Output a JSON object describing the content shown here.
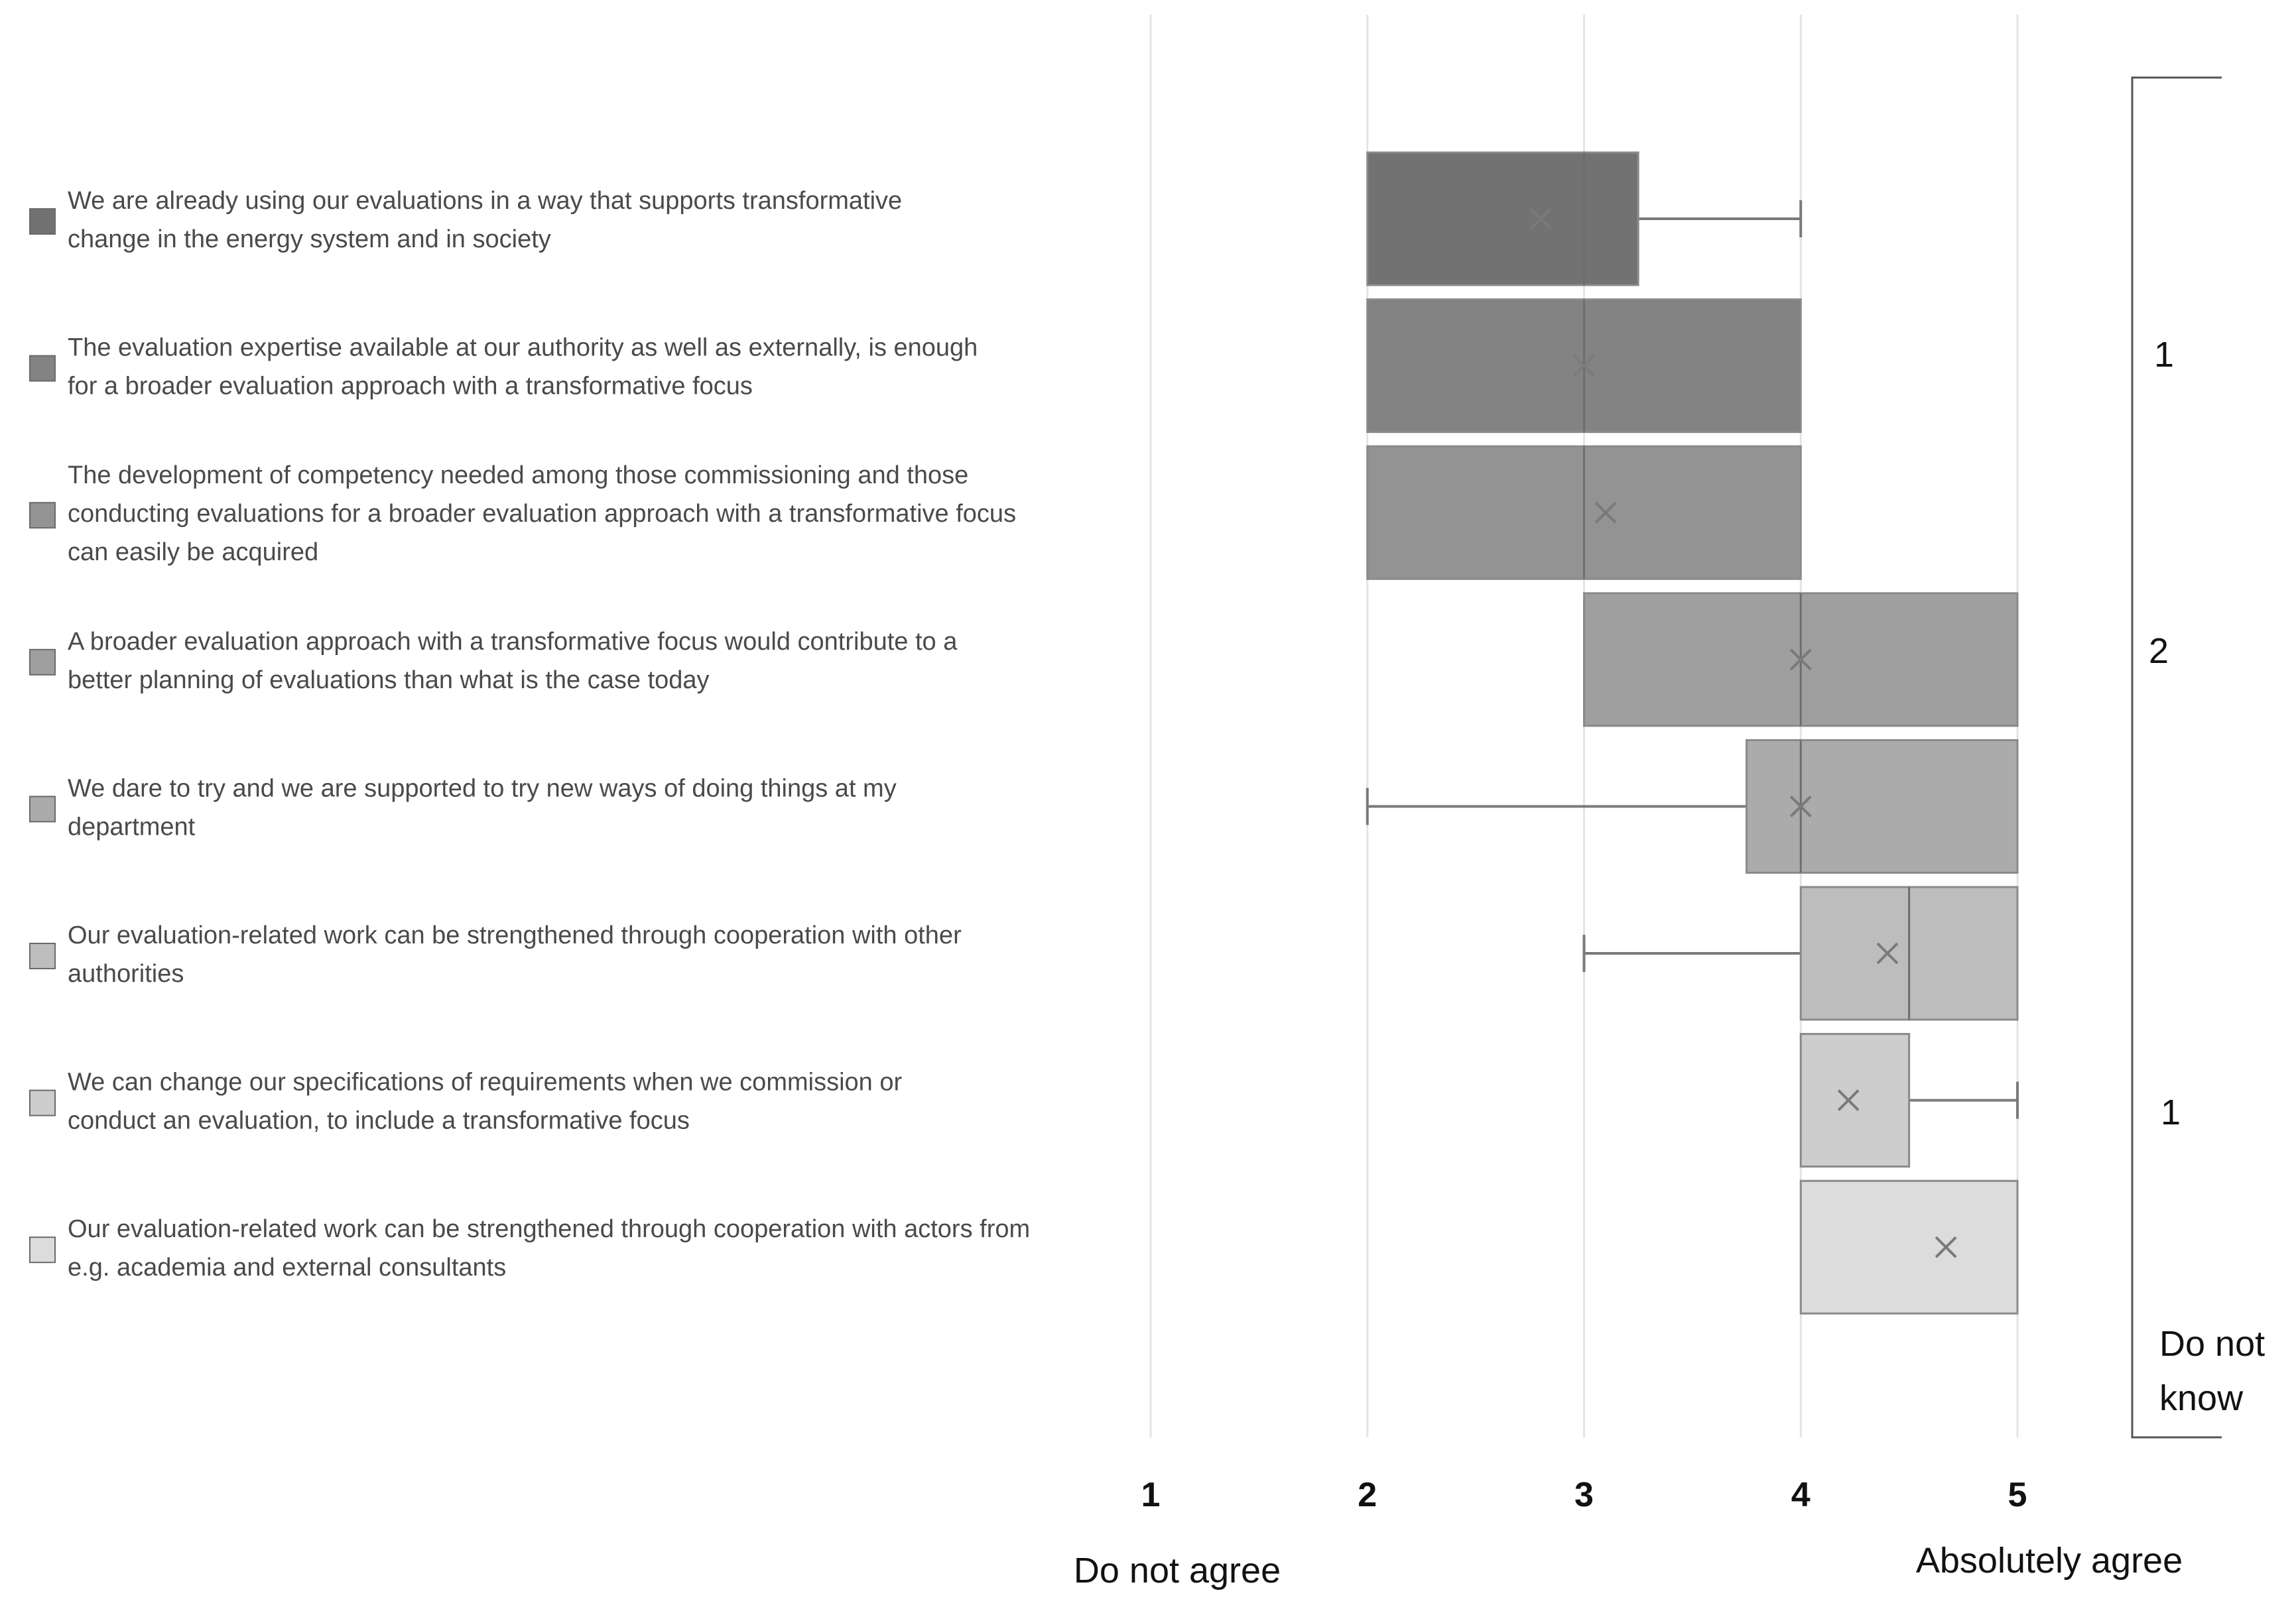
{
  "chart_data": {
    "type": "boxplot",
    "orientation": "horizontal",
    "xlim": [
      1,
      5
    ],
    "x_ticks": [
      "1",
      "2",
      "3",
      "4",
      "5"
    ],
    "x_low_label": "Do not agree",
    "x_high_label": "Absolutely agree",
    "items": [
      {
        "label_lines": [
          "We are already using our evaluations in a way that supports transformative",
          "change in the energy system and in society"
        ],
        "color": "#727272",
        "min": 2,
        "q1": 2,
        "median": 3,
        "q3": 3.25,
        "max": 4,
        "mean": 2.8
      },
      {
        "label_lines": [
          "The evaluation expertise available at our authority as well as externally, is enough",
          "for a broader evaluation approach with a transformative focus"
        ],
        "color": "#838383",
        "min": 2,
        "q1": 2,
        "median": 3,
        "q3": 4,
        "max": 4,
        "mean": 3.0
      },
      {
        "label_lines": [
          "The development of competency needed among those commissioning and those",
          "conducting evaluations for a broader evaluation approach with a transformative focus",
          "can easily be acquired"
        ],
        "color": "#939393",
        "min": 2,
        "q1": 2,
        "median": 3,
        "q3": 4,
        "max": 4,
        "mean": 3.1
      },
      {
        "label_lines": [
          "A broader evaluation approach with a transformative focus would contribute to a",
          "better planning of evaluations than what is the case today"
        ],
        "color": "#9f9f9f",
        "min": 3,
        "q1": 3,
        "median": 4,
        "q3": 5,
        "max": 5,
        "mean": 4.0
      },
      {
        "label_lines": [
          "We dare to try and we are supported to try new ways of doing things at my",
          "department"
        ],
        "color": "#ababab",
        "min": 2,
        "q1": 3.75,
        "median": 4,
        "q3": 5,
        "max": 5,
        "mean": 4.0
      },
      {
        "label_lines": [
          "Our evaluation-related work can be strengthened through cooperation with other",
          "authorities"
        ],
        "color": "#bdbdbd",
        "min": 3,
        "q1": 4,
        "median": 4.5,
        "q3": 5,
        "max": 5,
        "mean": 4.4
      },
      {
        "label_lines": [
          "We can change our specifications of requirements when we commission or",
          "conduct an evaluation, to include a transformative focus"
        ],
        "color": "#cdcdcd",
        "min": 4,
        "q1": 4,
        "median": 4,
        "q3": 4.5,
        "max": 5,
        "mean": 4.22
      },
      {
        "label_lines": [
          "Our evaluation-related work can be strengthened through cooperation with actors from",
          "e.g. academia and external consultants"
        ],
        "color": "#dcdcdc",
        "min": 4,
        "q1": 4,
        "median": 4,
        "q3": 5,
        "max": 5,
        "mean": 4.67
      }
    ],
    "side_labels": [
      "1",
      "2",
      "1",
      "Do not",
      "know"
    ]
  }
}
